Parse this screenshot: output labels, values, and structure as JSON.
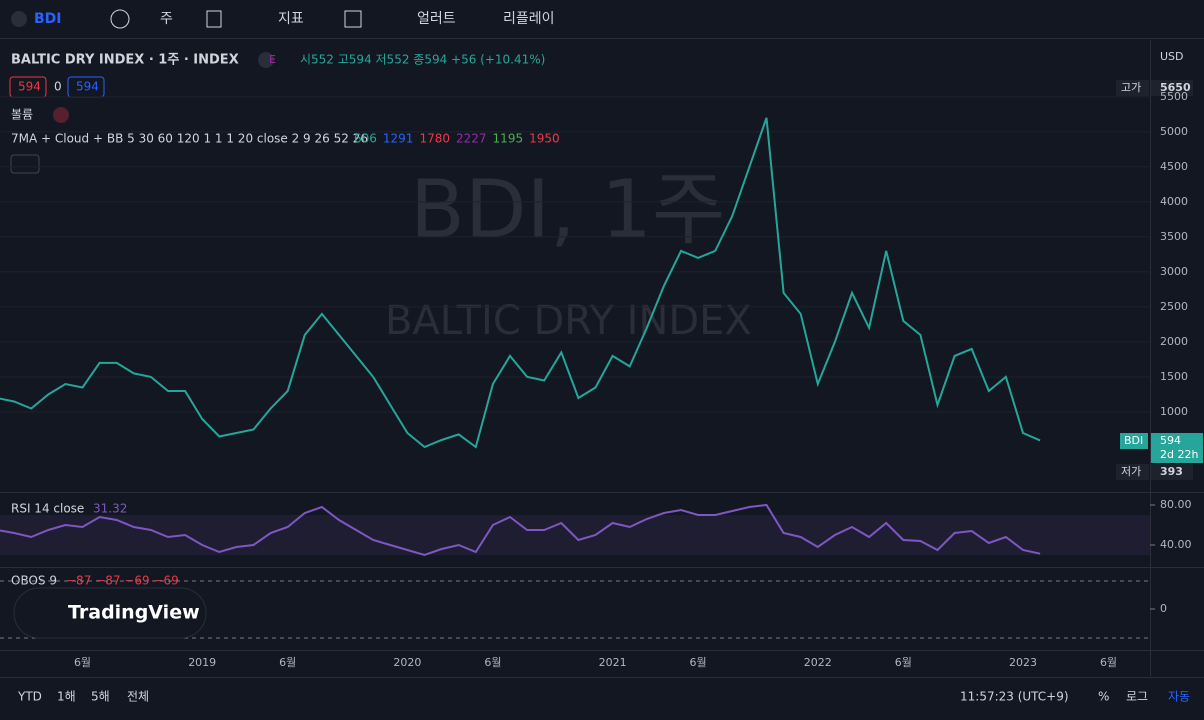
{
  "toolbar": {
    "symbol": "BDI",
    "interval": "주",
    "indicators": "지표",
    "alert": "얼러트",
    "replay": "리플레이"
  },
  "legend": {
    "title": "BALTIC DRY INDEX · 1주 · INDEX",
    "badge": "E",
    "ohlc": "시552 고594 저552 종594 +56 (+10.41%)",
    "bid": "594",
    "spread": "0",
    "ask": "594",
    "volume": "볼륨",
    "ma_name": "7MA + Cloud + BB 5 30 60 120 1 1 1 20 close 2 9 26 52 26",
    "ma_values": [
      {
        "text": "606",
        "color": "#26a69a"
      },
      {
        "text": "1291",
        "color": "#2962ff"
      },
      {
        "text": "1780",
        "color": "#f23645"
      },
      {
        "text": "2227",
        "color": "#9c27b0"
      },
      {
        "text": "1195",
        "color": "#4caf50"
      },
      {
        "text": "1950",
        "color": "#f23645"
      }
    ]
  },
  "watermark": {
    "line1": "BDI, 1주",
    "line2": "BALTIC DRY INDEX"
  },
  "price_scale": {
    "currency": "USD",
    "high_label": "고가",
    "high": "5650",
    "last_label": "BDI",
    "last": "594",
    "countdown": "2d 22h",
    "low_label": "저가",
    "low": "393"
  },
  "chart_data": {
    "type": "line",
    "categories": [
      null,
      null,
      null,
      null,
      null,
      "6월",
      null,
      null,
      null,
      null,
      null,
      null,
      "2019",
      null,
      null,
      null,
      null,
      "6월",
      null,
      null,
      null,
      null,
      null,
      null,
      "2020",
      null,
      null,
      null,
      null,
      "6월",
      null,
      null,
      null,
      null,
      null,
      null,
      "2021",
      null,
      null,
      null,
      null,
      "6월",
      null,
      null,
      null,
      null,
      null,
      null,
      "2022",
      null,
      null,
      null,
      null,
      "6월",
      null,
      null,
      null,
      null,
      null,
      null,
      "2023",
      null,
      null,
      null,
      null,
      "6월"
    ],
    "series": [
      {
        "name": "BDI",
        "color": "#26a69a",
        "values": [
          1200,
          1150,
          1050,
          1250,
          1400,
          1350,
          1700,
          1700,
          1550,
          1500,
          1300,
          1300,
          900,
          650,
          700,
          750,
          1050,
          1300,
          2100,
          2400,
          2100,
          1800,
          1500,
          1100,
          700,
          500,
          600,
          680,
          500,
          1400,
          1800,
          1500,
          1450,
          1850,
          1200,
          1350,
          1800,
          1650,
          2200,
          2800,
          3300,
          3200,
          3300,
          3800,
          4500,
          5200,
          2700,
          2400,
          1400,
          2000,
          2700,
          2200,
          3300,
          2300,
          2100,
          1100,
          1800,
          1900,
          1300,
          1500,
          700,
          594,
          null,
          null,
          null,
          null
        ]
      }
    ],
    "ylim": [
      -100,
      6240
    ],
    "yticks": [
      1000,
      1500,
      2000,
      2500,
      3000,
      3500,
      4000,
      4500,
      5000,
      5500
    ],
    "grid": true
  },
  "rsi": {
    "type": "line",
    "label": "RSI 14 close",
    "last": "31.32",
    "color": "#7e57c2",
    "values": [
      55,
      52,
      48,
      55,
      60,
      58,
      68,
      65,
      58,
      55,
      48,
      50,
      40,
      33,
      38,
      40,
      52,
      58,
      72,
      78,
      65,
      55,
      45,
      40,
      35,
      30,
      36,
      40,
      33,
      60,
      68,
      55,
      55,
      62,
      45,
      50,
      62,
      58,
      66,
      72,
      75,
      70,
      70,
      74,
      78,
      80,
      52,
      48,
      38,
      50,
      58,
      48,
      62,
      45,
      44,
      35,
      52,
      54,
      42,
      48,
      35,
      31.32,
      null,
      null,
      null,
      null
    ],
    "ylim": [
      20,
      90
    ],
    "yticks": [
      {
        "value": 40,
        "label": "40.00"
      },
      {
        "value": 80,
        "label": "80.00"
      }
    ]
  },
  "obos": {
    "label": "OBOS 9",
    "values_text": "−87 −87 −69 −69",
    "yticks": [
      0
    ]
  },
  "logo": "TradingView",
  "bottom_bar": {
    "ranges": [
      "YTD",
      "1해",
      "5해",
      "전체"
    ],
    "clock": "11:57:23 (UTC+9)",
    "percent": "%",
    "log": "로그",
    "auto": "자동"
  }
}
